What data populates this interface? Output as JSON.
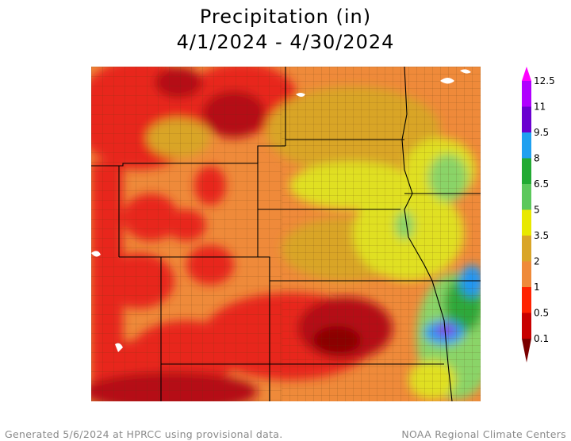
{
  "title_line1": "Precipitation (in)",
  "title_line2": "4/1/2024 - 4/30/2024",
  "footer_left": "Generated 5/6/2024 at HPRCC using provisional data.",
  "footer_right": "NOAA Regional Climate Centers",
  "legend": {
    "labels": [
      "12.5",
      "11",
      "9.5",
      "8",
      "6.5",
      "5",
      "3.5",
      "2",
      "1",
      "0.5",
      "0.1"
    ],
    "colors": [
      "#ff00ff",
      "#b000ff",
      "#6a00d0",
      "#1fa0f0",
      "#22aa33",
      "#5cc85c",
      "#e8e800",
      "#d9a528",
      "#ef8a3a",
      "#ff2200",
      "#c80000",
      "#7a0000"
    ]
  },
  "map_palette": {
    "background": "#ef8a3a",
    "dry_red": "#e8281c",
    "very_dry": "#b50f12",
    "extreme_dry": "#8b0000",
    "moderate": "#d9a528",
    "wet_yellow": "#e0e020",
    "wet_green_light": "#8ad468",
    "wet_green": "#2ea83a",
    "wet_blue": "#2196f3",
    "wet_purple": "#8a2be2",
    "boundary": "#000000",
    "county": "#5a3a10"
  }
}
